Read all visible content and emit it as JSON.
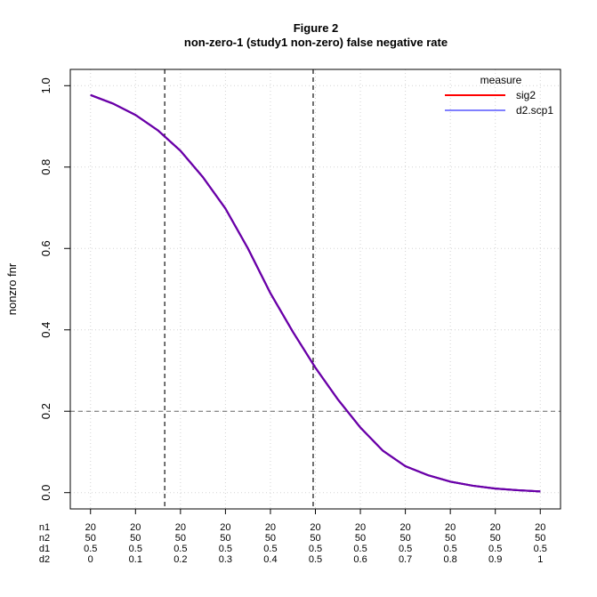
{
  "chart_data": {
    "type": "line",
    "title": "Figure 2",
    "subtitle": "non-zero-1 (study1 non-zero) false negative rate",
    "ylabel": "nonzro fnr",
    "ylim": [
      -0.04,
      1.04
    ],
    "yticks": [
      "0.0",
      "0.2",
      "0.4",
      "0.6",
      "0.8",
      "1.0"
    ],
    "xlim": [
      -0.045,
      1.045
    ],
    "grid": true,
    "legend_title": "measure",
    "legend_position": "top-right",
    "x": [
      0.0,
      0.05,
      0.1,
      0.15,
      0.2,
      0.25,
      0.3,
      0.35,
      0.4,
      0.45,
      0.5,
      0.55,
      0.6,
      0.65,
      0.7,
      0.75,
      0.8,
      0.85,
      0.9,
      0.95,
      1.0
    ],
    "series": [
      {
        "name": "sig2",
        "color": "#ff0000",
        "values": [
          0.977,
          0.956,
          0.928,
          0.89,
          0.84,
          0.775,
          0.698,
          0.6,
          0.49,
          0.395,
          0.307,
          0.229,
          0.16,
          0.103,
          0.065,
          0.043,
          0.027,
          0.017,
          0.01,
          0.006,
          0.003
        ]
      },
      {
        "name": "d2.scp1",
        "color": "#0000ff",
        "values": [
          0.977,
          0.956,
          0.928,
          0.89,
          0.84,
          0.775,
          0.698,
          0.6,
          0.49,
          0.395,
          0.307,
          0.229,
          0.16,
          0.103,
          0.065,
          0.043,
          0.027,
          0.017,
          0.01,
          0.006,
          0.003
        ]
      }
    ],
    "render_color": "#6a00a8",
    "hline": {
      "y": 0.2,
      "style": "dashed"
    },
    "vlines": [
      {
        "x": 0.165,
        "style": "dashed"
      },
      {
        "x": 0.495,
        "style": "dashed"
      }
    ],
    "x_rows": {
      "labels": [
        "n1",
        "n2",
        "d1",
        "d2"
      ],
      "positions": [
        0.0,
        0.1,
        0.2,
        0.3,
        0.4,
        0.5,
        0.6,
        0.7,
        0.8,
        0.9,
        1.0
      ],
      "n1": [
        "20",
        "20",
        "20",
        "20",
        "20",
        "20",
        "20",
        "20",
        "20",
        "20",
        "20"
      ],
      "n2": [
        "50",
        "50",
        "50",
        "50",
        "50",
        "50",
        "50",
        "50",
        "50",
        "50",
        "50"
      ],
      "d1": [
        "0.5",
        "0.5",
        "0.5",
        "0.5",
        "0.5",
        "0.5",
        "0.5",
        "0.5",
        "0.5",
        "0.5",
        "0.5"
      ],
      "d2": [
        "0",
        "0.1",
        "0.2",
        "0.3",
        "0.4",
        "0.5",
        "0.6",
        "0.7",
        "0.8",
        "0.9",
        "1"
      ]
    }
  }
}
